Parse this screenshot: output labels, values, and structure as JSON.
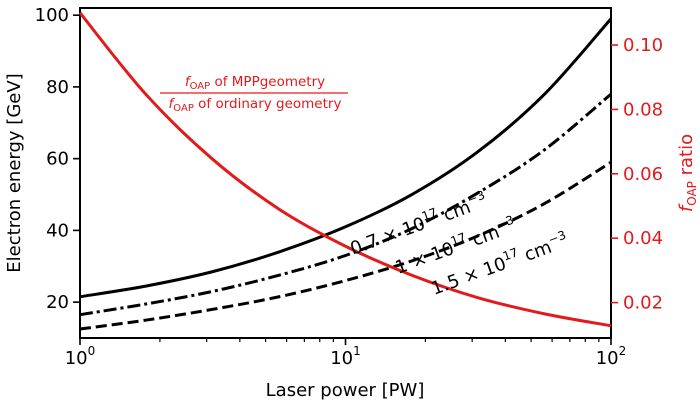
{
  "chart_data": {
    "type": "line",
    "x_scale": "log",
    "xlim": [
      1,
      100
    ],
    "xlabel": "Laser power [PW]",
    "x_ticks": [
      1,
      10,
      100
    ],
    "x_tick_labels": [
      {
        "base": "10",
        "exp": "0"
      },
      {
        "base": "10",
        "exp": "1"
      },
      {
        "base": "10",
        "exp": "2"
      }
    ],
    "y_left": {
      "label": "Electron energy [GeV]",
      "lim": [
        10,
        102
      ],
      "ticks": [
        20,
        40,
        60,
        80,
        100
      ],
      "tick_labels": [
        "20",
        "40",
        "60",
        "80",
        "100"
      ]
    },
    "y_right": {
      "label_f": "f",
      "label_sub": "OAP",
      "label_rest": " ratio",
      "lim": [
        0.009,
        0.1115
      ],
      "ticks": [
        0.02,
        0.04,
        0.06,
        0.08,
        0.1
      ],
      "tick_labels": [
        "0.02",
        "0.04",
        "0.06",
        "0.08",
        "0.10"
      ],
      "color": "#e31a1c"
    },
    "series": [
      {
        "axis": "left",
        "style": "solid",
        "color": "#000000",
        "annotation": {
          "pre": "0.7 × 10",
          "exp": "17",
          "mid": " cm",
          "exp2": "−3"
        },
        "x": [
          1,
          1.778,
          3.162,
          5.623,
          10,
          17.78,
          31.62,
          56.23,
          100
        ],
        "y": [
          21.5,
          24.5,
          28.5,
          34,
          41,
          50,
          62,
          78,
          99
        ]
      },
      {
        "axis": "left",
        "style": "dashdot",
        "color": "#000000",
        "annotation": {
          "pre": "1 × 10",
          "exp": "17",
          "mid": " cm",
          "exp2": "−3"
        },
        "x": [
          1,
          1.778,
          3.162,
          5.623,
          10,
          17.78,
          31.62,
          56.23,
          100
        ],
        "y": [
          16.5,
          19.5,
          23,
          27.5,
          33,
          40.5,
          50.5,
          62.5,
          78
        ]
      },
      {
        "axis": "left",
        "style": "dashed",
        "color": "#000000",
        "annotation": {
          "pre": "1.5 × 10",
          "exp": "17",
          "mid": " cm",
          "exp2": "−3"
        },
        "x": [
          1,
          1.778,
          3.162,
          5.623,
          10,
          17.78,
          31.62,
          56.23,
          100
        ],
        "y": [
          12.5,
          15,
          18,
          21.5,
          26,
          31.5,
          38.5,
          47.5,
          59
        ]
      },
      {
        "axis": "right",
        "style": "solid",
        "color": "#e31a1c",
        "x": [
          1,
          1.778,
          3.162,
          5.623,
          10,
          17.78,
          31.62,
          56.23,
          100
        ],
        "y": [
          0.11,
          0.0845,
          0.0645,
          0.049,
          0.0375,
          0.0285,
          0.0215,
          0.0165,
          0.0128
        ]
      }
    ],
    "ratio_annotation": {
      "numerator": {
        "f": "f",
        "sub": "OAP",
        "rest": " of MPPgeometry"
      },
      "denominator": {
        "f": "f",
        "sub": "OAP",
        "rest": " of ordinary geometry"
      }
    }
  }
}
